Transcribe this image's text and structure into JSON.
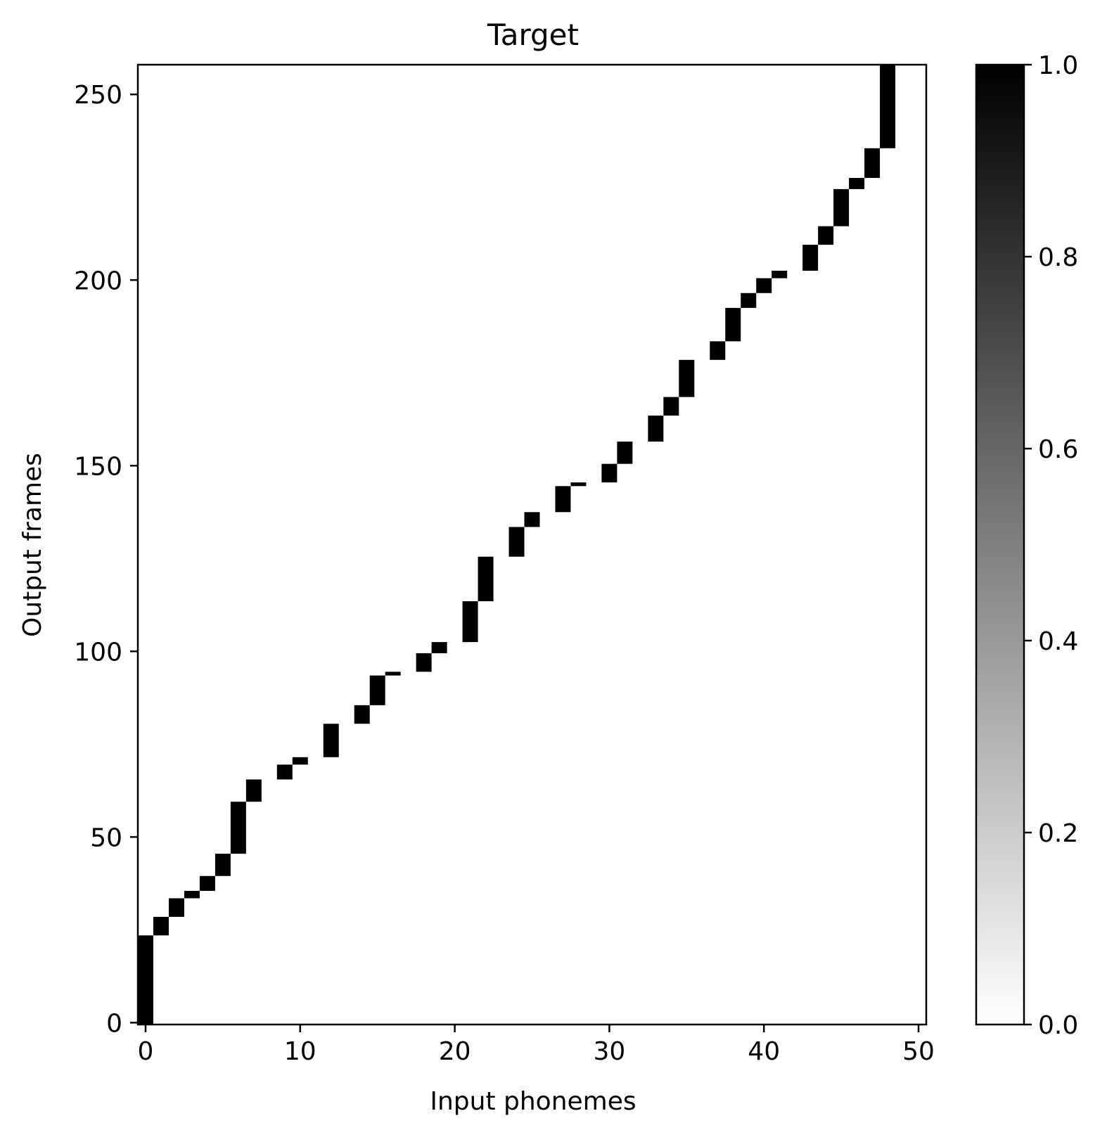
{
  "chart_data": {
    "type": "heatmap",
    "title": "Target",
    "xlabel": "Input phonemes",
    "ylabel": "Output frames",
    "xlim": [
      -0.5,
      50.5
    ],
    "ylim": [
      -0.5,
      258
    ],
    "x_ticks": [
      0,
      10,
      20,
      30,
      40,
      50
    ],
    "y_ticks": [
      0,
      50,
      100,
      150,
      200,
      250
    ],
    "colorbar": {
      "colormap": "gray_r",
      "min": 0.0,
      "max": 1.0,
      "ticks": [
        "0.0",
        "0.2",
        "0.4",
        "0.6",
        "0.8",
        "1.0"
      ]
    },
    "value": 1.0,
    "alignment": [
      {
        "phoneme": 0,
        "frames": [
          0,
          23
        ]
      },
      {
        "phoneme": 1,
        "frames": [
          24,
          28
        ]
      },
      {
        "phoneme": 2,
        "frames": [
          29,
          33
        ]
      },
      {
        "phoneme": 3,
        "frames": [
          34,
          35
        ]
      },
      {
        "phoneme": 4,
        "frames": [
          36,
          39
        ]
      },
      {
        "phoneme": 5,
        "frames": [
          40,
          45
        ]
      },
      {
        "phoneme": 6,
        "frames": [
          46,
          59
        ]
      },
      {
        "phoneme": 7,
        "frames": [
          60,
          65
        ]
      },
      {
        "phoneme": 9,
        "frames": [
          66,
          69
        ]
      },
      {
        "phoneme": 10,
        "frames": [
          70,
          71
        ]
      },
      {
        "phoneme": 12,
        "frames": [
          72,
          80
        ]
      },
      {
        "phoneme": 14,
        "frames": [
          81,
          85
        ]
      },
      {
        "phoneme": 15,
        "frames": [
          86,
          93
        ]
      },
      {
        "phoneme": 16,
        "frames": [
          94,
          94
        ]
      },
      {
        "phoneme": 18,
        "frames": [
          95,
          99
        ]
      },
      {
        "phoneme": 19,
        "frames": [
          100,
          102
        ]
      },
      {
        "phoneme": 21,
        "frames": [
          103,
          113
        ]
      },
      {
        "phoneme": 22,
        "frames": [
          114,
          125
        ]
      },
      {
        "phoneme": 24,
        "frames": [
          126,
          133
        ]
      },
      {
        "phoneme": 25,
        "frames": [
          134,
          137
        ]
      },
      {
        "phoneme": 27,
        "frames": [
          138,
          144
        ]
      },
      {
        "phoneme": 28,
        "frames": [
          145,
          145
        ]
      },
      {
        "phoneme": 30,
        "frames": [
          146,
          150
        ]
      },
      {
        "phoneme": 31,
        "frames": [
          151,
          156
        ]
      },
      {
        "phoneme": 33,
        "frames": [
          157,
          163
        ]
      },
      {
        "phoneme": 34,
        "frames": [
          164,
          168
        ]
      },
      {
        "phoneme": 35,
        "frames": [
          169,
          178
        ]
      },
      {
        "phoneme": 37,
        "frames": [
          179,
          183
        ]
      },
      {
        "phoneme": 38,
        "frames": [
          184,
          192
        ]
      },
      {
        "phoneme": 39,
        "frames": [
          193,
          196
        ]
      },
      {
        "phoneme": 40,
        "frames": [
          197,
          200
        ]
      },
      {
        "phoneme": 41,
        "frames": [
          201,
          202
        ]
      },
      {
        "phoneme": 43,
        "frames": [
          203,
          209
        ]
      },
      {
        "phoneme": 44,
        "frames": [
          210,
          214
        ]
      },
      {
        "phoneme": 45,
        "frames": [
          215,
          224
        ]
      },
      {
        "phoneme": 46,
        "frames": [
          225,
          227
        ]
      },
      {
        "phoneme": 47,
        "frames": [
          228,
          235
        ]
      },
      {
        "phoneme": 48,
        "frames": [
          236,
          258
        ]
      }
    ]
  }
}
